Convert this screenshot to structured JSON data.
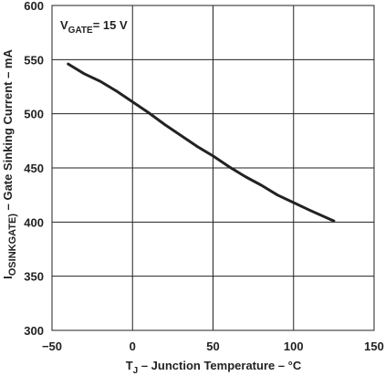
{
  "chart_data": {
    "type": "line",
    "title": "",
    "xlabel": {
      "main": "T",
      "sub": "J",
      "rest": " – Junction Temperature – °C"
    },
    "ylabel": {
      "main": "I",
      "sub": "OSINKGATE)",
      "rest": " – Gate Sinking Current – mA"
    },
    "annotation": {
      "main": "V",
      "sub": "GATE",
      "rest": "= 15 V"
    },
    "xlim": [
      -50,
      150
    ],
    "ylim": [
      300,
      600
    ],
    "xticks": [
      -50,
      0,
      50,
      100,
      150
    ],
    "yticks": [
      300,
      350,
      400,
      450,
      500,
      550,
      600
    ],
    "xtick_labels": [
      "−50",
      "0",
      "50",
      "100",
      "150"
    ],
    "ytick_labels": [
      "300",
      "350",
      "400",
      "450",
      "500",
      "550",
      "600"
    ],
    "grid": true,
    "series": [
      {
        "x": [
          -40,
          -30,
          -20,
          -10,
          0,
          10,
          20,
          30,
          40,
          50,
          60,
          70,
          80,
          90,
          100,
          110,
          125
        ],
        "y": [
          546,
          537,
          530,
          521,
          511,
          501,
          490,
          480,
          470,
          461,
          451,
          442,
          434,
          425,
          418,
          411,
          401
        ]
      }
    ]
  },
  "colors": {
    "line": "#222222",
    "grid": "#222222",
    "text": "#222222"
  }
}
